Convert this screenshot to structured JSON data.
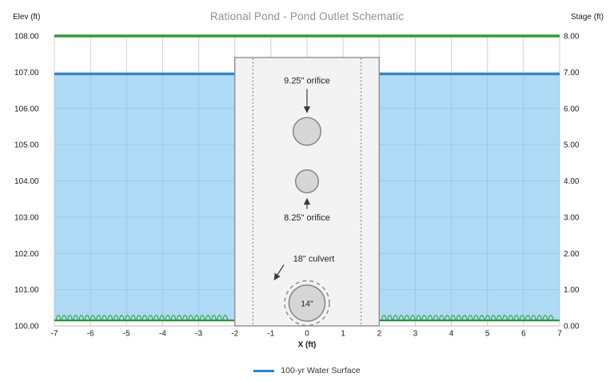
{
  "chart_data": {
    "type": "schematic",
    "title": "Rational Pond - Pond Outlet Schematic",
    "axes": {
      "left_title": "Elev (ft)",
      "right_title": "Stage (ft)",
      "x_title": "X (ft)",
      "elev_range": [
        100,
        108
      ],
      "stage_range": [
        0,
        8
      ],
      "x_range": [
        -7,
        7
      ],
      "elev_ticks": [
        "108.00",
        "107.00",
        "106.00",
        "105.00",
        "104.00",
        "103.00",
        "102.00",
        "101.00",
        "100.00"
      ],
      "stage_ticks": [
        "8.00",
        "7.00",
        "6.00",
        "5.00",
        "4.00",
        "3.00",
        "2.00",
        "1.00",
        "0.00"
      ],
      "x_ticks": [
        "-7",
        "-6",
        "-5",
        "-4",
        "-3",
        "-2",
        "-1",
        "0",
        "1",
        "2",
        "3",
        "4",
        "5",
        "6",
        "7"
      ],
      "grid": true
    },
    "top_of_pond": {
      "elev": 108.0,
      "color": "#2e9e3a"
    },
    "water": {
      "surface_elev": 106.95,
      "fill_color": "#aad4ee",
      "line_color": "#2a85c6"
    },
    "ground": {
      "elev": 100.15,
      "color": "#2e8b3a"
    },
    "outlet_structure": {
      "x_left": -2,
      "x_right": 2,
      "top_elev": 107.4,
      "inner_wall_x": [
        -1.5,
        1.5
      ]
    },
    "outlets": [
      {
        "label": "9.25\" orifice",
        "shape": "circle",
        "center_x": 0,
        "center_elev": 105.35,
        "diameter_in": 9.25
      },
      {
        "label": "8.25\" orifice",
        "shape": "circle",
        "center_x": 0,
        "center_elev": 104.0,
        "diameter_in": 8.25
      },
      {
        "label": "18\" culvert",
        "inner_label": "14\"",
        "shape": "circle",
        "center_x": 0,
        "center_elev": 100.65,
        "outer_diameter_in": 18,
        "inner_diameter_in": 14
      }
    ],
    "legend": [
      {
        "label": "100-yr Water Surface",
        "color": "#2a85c6"
      }
    ]
  }
}
